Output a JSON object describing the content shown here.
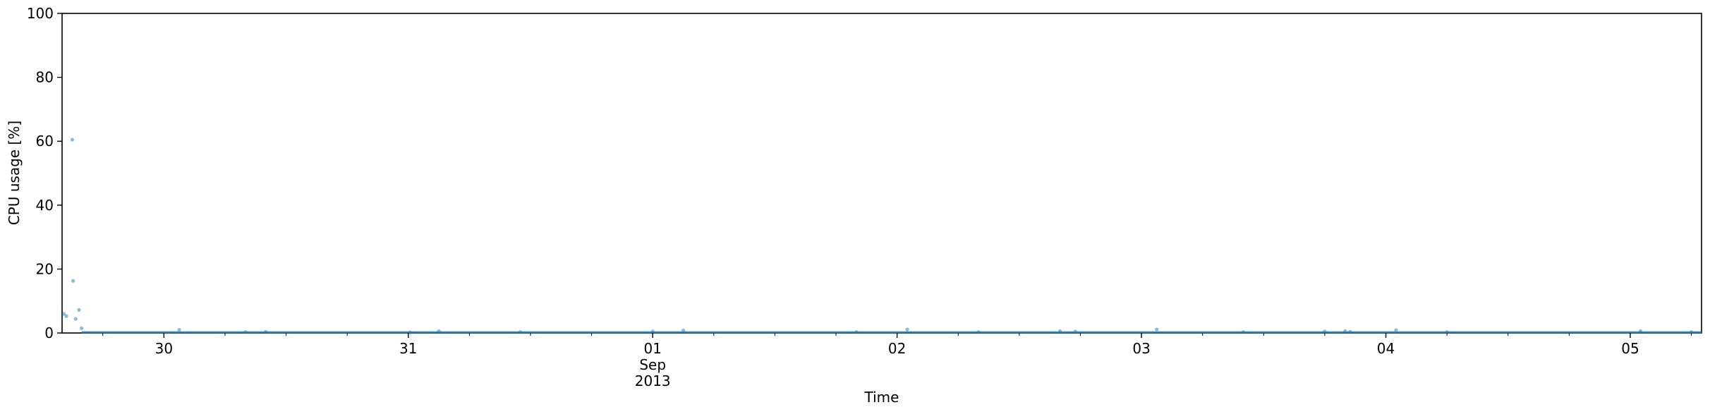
{
  "chart_data": {
    "type": "scatter",
    "title": "",
    "xlabel": "Time",
    "ylabel": "CPU usage [%]",
    "ylim": [
      0,
      100
    ],
    "xlim": [
      "2013-08-29 14:00",
      "2013-09-05 07:00"
    ],
    "x_ticks": [
      {
        "at": "2013-08-30",
        "label": "30"
      },
      {
        "at": "2013-08-31",
        "label": "31"
      },
      {
        "at": "2013-09-01",
        "label": "01"
      },
      {
        "at": "2013-09-02",
        "label": "02"
      },
      {
        "at": "2013-09-03",
        "label": "03"
      },
      {
        "at": "2013-09-04",
        "label": "04"
      },
      {
        "at": "2013-09-05",
        "label": "05"
      }
    ],
    "x_tick_sublabels": [
      "Sep",
      "2013"
    ],
    "y_ticks": [
      0,
      20,
      40,
      60,
      80,
      100
    ],
    "grid": false,
    "legend": "none",
    "colors": {
      "points": "#1f77b4",
      "axes": "#000000"
    },
    "series": [
      {
        "name": "",
        "points": [
          [
            "2013-08-29 14:10",
            6.0
          ],
          [
            "2013-08-29 14:25",
            5.3
          ],
          [
            "2013-08-29 15:00",
            60.5
          ],
          [
            "2013-08-29 15:05",
            16.3
          ],
          [
            "2013-08-29 15:20",
            4.4
          ],
          [
            "2013-08-29 15:40",
            7.2
          ],
          [
            "2013-08-29 15:55",
            1.5
          ],
          [
            "2013-08-30 01:30",
            1.0
          ],
          [
            "2013-08-30 08:00",
            0.3
          ],
          [
            "2013-08-30 10:00",
            0.4
          ],
          [
            "2013-08-31 00:10",
            0.2
          ],
          [
            "2013-08-31 03:00",
            0.6
          ],
          [
            "2013-08-31 11:00",
            0.3
          ],
          [
            "2013-09-01 00:00",
            0.5
          ],
          [
            "2013-09-01 03:00",
            0.8
          ],
          [
            "2013-09-01 20:00",
            0.3
          ],
          [
            "2013-09-02 01:00",
            1.1
          ],
          [
            "2013-09-02 08:00",
            0.3
          ],
          [
            "2013-09-02 16:00",
            0.6
          ],
          [
            "2013-09-02 17:30",
            0.5
          ],
          [
            "2013-09-03 01:30",
            1.1
          ],
          [
            "2013-09-03 10:00",
            0.3
          ],
          [
            "2013-09-03 18:00",
            0.5
          ],
          [
            "2013-09-03 20:00",
            0.6
          ],
          [
            "2013-09-03 20:30",
            0.4
          ],
          [
            "2013-09-04 01:00",
            0.9
          ],
          [
            "2013-09-04 06:00",
            0.3
          ],
          [
            "2013-09-05 01:00",
            0.6
          ],
          [
            "2013-09-05 06:00",
            0.3
          ]
        ]
      }
    ]
  }
}
